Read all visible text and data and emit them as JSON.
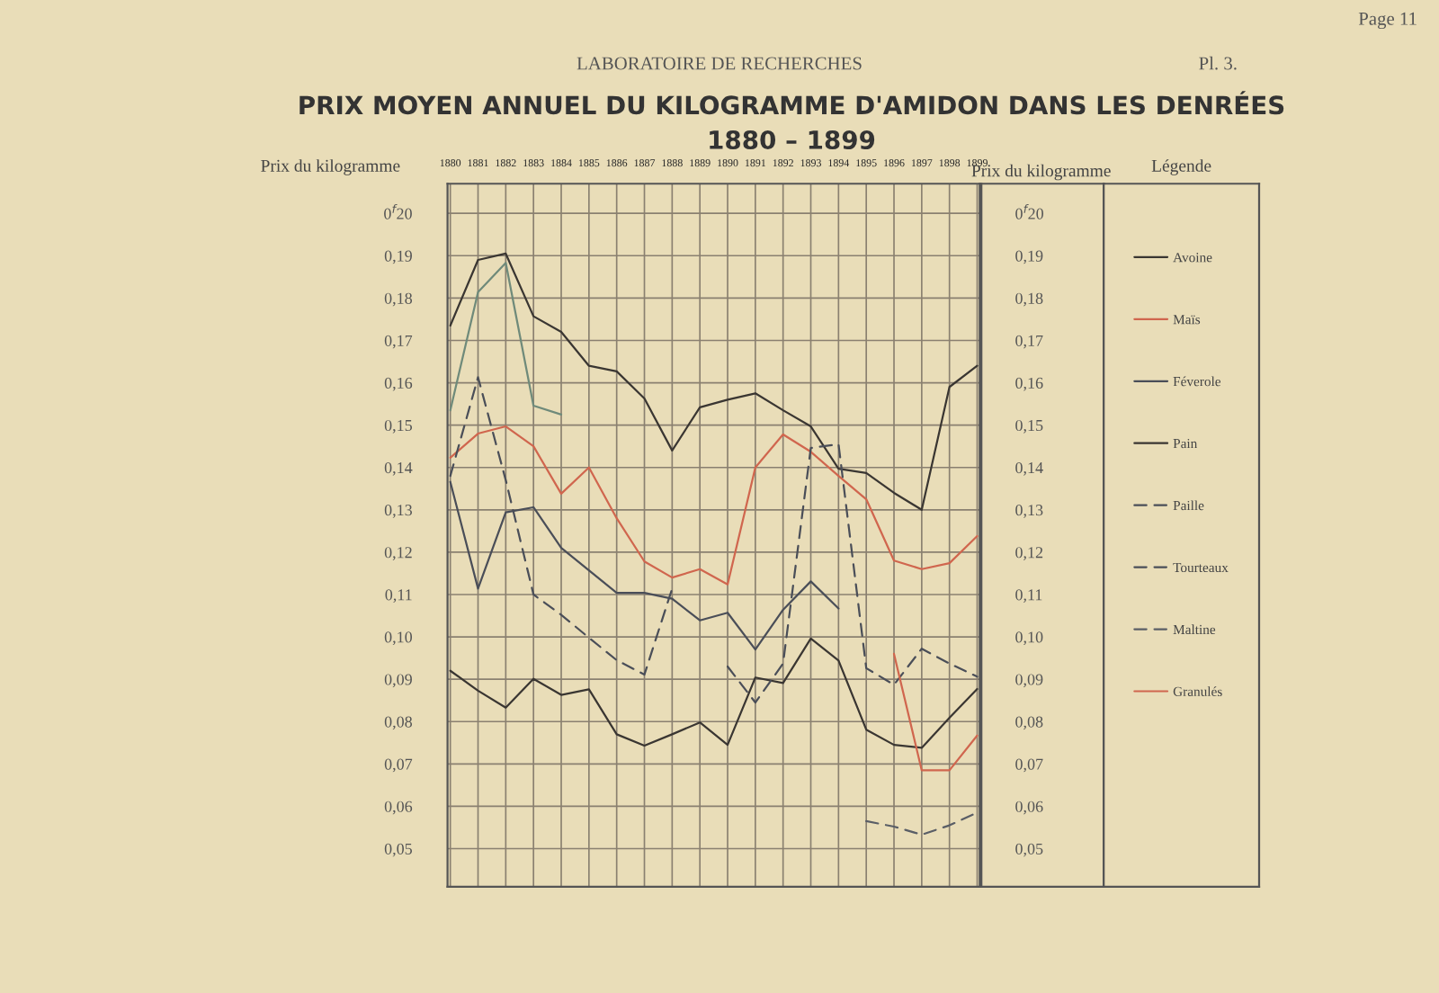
{
  "chart_data": {
    "type": "line",
    "title": "PRIX MOYEN ANNUEL DU KILOGRAMME D'AMIDON DANS LES DENRÉES",
    "subtitle": "1880 – 1899",
    "ylabel": "Prix du kilogramme",
    "y2label": "Prix du kilogramme",
    "legend_title": "Légende",
    "annotations": [
      "LABORATOIRE DE RECHERCHES",
      "Pl. 3.",
      "Page 11"
    ],
    "categories": [
      "1880",
      "1881",
      "1882",
      "1883",
      "1884",
      "1885",
      "1886",
      "1887",
      "1888",
      "1889",
      "1890",
      "1891",
      "1892",
      "1893",
      "1894",
      "1895",
      "1896",
      "1897",
      "1898",
      "1899"
    ],
    "series": [
      {
        "name": "Avoine",
        "color": "#3a3632",
        "line_style": "solid",
        "values": [
          0.1735,
          0.189,
          0.1905,
          0.1757,
          0.172,
          0.164,
          0.1627,
          0.1563,
          0.144,
          0.1542,
          0.156,
          0.1575,
          0.1535,
          0.1497,
          0.1397,
          0.1387,
          0.134,
          0.13,
          0.159,
          0.164
        ]
      },
      {
        "name": "Maïs",
        "color": "#d0664e",
        "line_style": "solid",
        "values": [
          0.1423,
          0.148,
          0.1497,
          0.145,
          0.1338,
          0.14,
          0.128,
          0.1178,
          0.114,
          0.116,
          0.1124,
          0.14,
          0.1478,
          0.1437,
          0.138,
          0.1325,
          0.118,
          0.116,
          0.1174,
          0.1238
        ]
      },
      {
        "name": "Féverole",
        "color": "#4a4e58",
        "line_style": "solid",
        "values": [
          0.1366,
          0.1114,
          0.1294,
          0.1306,
          0.121,
          0.1157,
          0.1104,
          0.1104,
          0.109,
          0.1039,
          0.1057,
          0.097,
          0.1064,
          0.1131,
          0.1067,
          null,
          null,
          null,
          null,
          null
        ]
      },
      {
        "name": "Pain",
        "color": "#3a3632",
        "line_style": "solid",
        "values": [
          0.092,
          0.0873,
          0.0833,
          0.0901,
          0.0863,
          0.0876,
          0.077,
          0.0743,
          0.077,
          0.0798,
          0.0745,
          0.0904,
          0.0891,
          0.0996,
          0.0944,
          0.0781,
          0.0745,
          0.0738,
          0.0809,
          0.0877
        ]
      },
      {
        "name": "Paille",
        "color": "#4a4e58",
        "line_style": "dashed",
        "values": [
          0.138,
          0.1613,
          0.137,
          0.11,
          0.1052,
          0.0998,
          0.0945,
          0.0911,
          0.1114,
          null,
          null,
          null,
          null,
          null,
          null,
          null,
          null,
          null,
          null,
          null
        ]
      },
      {
        "name": "Tourteaux",
        "color": "#4a4e58",
        "line_style": "dashed",
        "values": [
          null,
          null,
          null,
          null,
          null,
          null,
          null,
          null,
          null,
          null,
          0.093,
          0.0845,
          0.0937,
          0.1446,
          0.1455,
          0.0926,
          0.0887,
          0.0972,
          0.0937,
          0.0906
        ]
      },
      {
        "name": "Maltine",
        "color": "#5a5e66",
        "line_style": "dashed",
        "values": [
          null,
          null,
          null,
          null,
          null,
          null,
          null,
          null,
          null,
          null,
          null,
          null,
          null,
          null,
          null,
          0.0565,
          0.0552,
          0.0533,
          0.0555,
          0.0585
        ]
      },
      {
        "name": "Granulés",
        "color": "#d0664e",
        "line_style": "solid",
        "values": [
          null,
          null,
          null,
          null,
          null,
          null,
          null,
          null,
          null,
          null,
          null,
          null,
          null,
          null,
          null,
          null,
          0.096,
          0.0685,
          0.0685,
          0.0767
        ]
      },
      {
        "color": "#6f8a7a",
        "line_style": "solid",
        "values": [
          0.1535,
          0.1814,
          0.1883,
          0.1546,
          0.1525,
          null,
          null,
          null,
          null,
          null,
          null,
          null,
          null,
          null,
          null,
          null,
          null,
          null,
          null,
          null
        ]
      }
    ],
    "ylim": [
      0.041,
      0.207
    ],
    "yticks": [
      {
        "value": 0.2,
        "label": "0$^{f}$20"
      },
      {
        "value": 0.19,
        "label": "0,19"
      },
      {
        "value": 0.18,
        "label": "0,18"
      },
      {
        "value": 0.17,
        "label": "0,17"
      },
      {
        "value": 0.16,
        "label": "0,16"
      },
      {
        "value": 0.15,
        "label": "0,15"
      },
      {
        "value": 0.14,
        "label": "0,14"
      },
      {
        "value": 0.13,
        "label": "0,13"
      },
      {
        "value": 0.12,
        "label": "0,12"
      },
      {
        "value": 0.11,
        "label": "0,11"
      },
      {
        "value": 0.1,
        "label": "0,10"
      },
      {
        "value": 0.09,
        "label": "0,09"
      },
      {
        "value": 0.08,
        "label": "0,08"
      },
      {
        "value": 0.07,
        "label": "0,07"
      },
      {
        "value": 0.06,
        "label": "0,06"
      },
      {
        "value": 0.05,
        "label": "0,05"
      }
    ],
    "y2lim": [
      0.041,
      0.207
    ],
    "y2ticks": [
      {
        "value": 0.2,
        "label": "0$^{f}$20"
      },
      {
        "value": 0.19,
        "label": "0,19"
      },
      {
        "value": 0.18,
        "label": "0,18"
      },
      {
        "value": 0.17,
        "label": "0,17"
      },
      {
        "value": 0.16,
        "label": "0,16"
      },
      {
        "value": 0.15,
        "label": "0,15"
      },
      {
        "value": 0.14,
        "label": "0,14"
      },
      {
        "value": 0.13,
        "label": "0,13"
      },
      {
        "value": 0.12,
        "label": "0,12"
      },
      {
        "value": 0.11,
        "label": "0,11"
      },
      {
        "value": 0.1,
        "label": "0,10"
      },
      {
        "value": 0.09,
        "label": "0,09"
      },
      {
        "value": 0.08,
        "label": "0,08"
      },
      {
        "value": 0.07,
        "label": "0,07"
      },
      {
        "value": 0.06,
        "label": "0,06"
      },
      {
        "value": 0.05,
        "label": "0,05"
      }
    ],
    "grid": true,
    "legend": "right"
  }
}
